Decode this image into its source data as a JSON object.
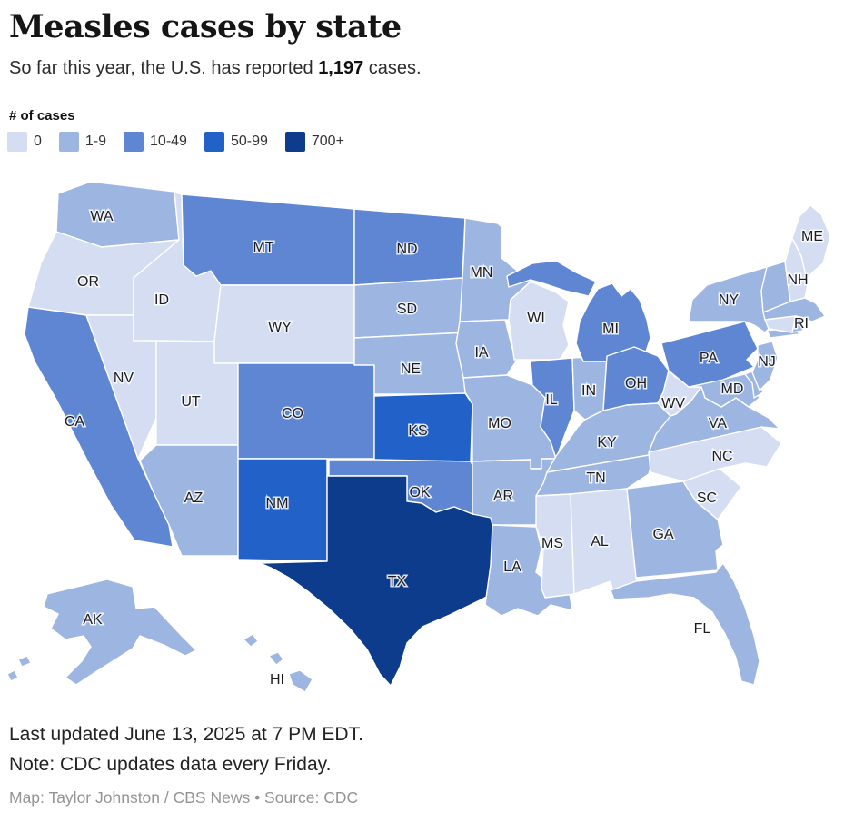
{
  "header": {
    "title": "Measles cases by state",
    "subtitle_prefix": "So far this year, the U.S. has reported ",
    "subtitle_value": "1,197",
    "subtitle_suffix": " cases."
  },
  "legend": {
    "label": "# of cases",
    "items": [
      {
        "label": "0",
        "color": "#d4ddf1"
      },
      {
        "label": "1-9",
        "color": "#9db5e1"
      },
      {
        "label": "10-49",
        "color": "#5e86d3"
      },
      {
        "label": "50-99",
        "color": "#2262c8"
      },
      {
        "label": "700+",
        "color": "#0d3c8c"
      }
    ]
  },
  "footer": {
    "updated": "Last updated June 13, 2025 at 7 PM EDT.",
    "note": "Note: CDC updates data every Friday.",
    "credit": "Map: Taylor Johnston / CBS News • Source: CDC"
  },
  "chart_data": {
    "type": "choropleth_map",
    "title": "Measles cases by state",
    "unit": "measles cases",
    "total_cases": "1,197",
    "buckets": [
      "0",
      "1-9",
      "10-49",
      "50-99",
      "700+"
    ],
    "states": [
      {
        "abbr": "WA",
        "cases": "1-9",
        "labeled": true
      },
      {
        "abbr": "OR",
        "cases": "0",
        "labeled": true
      },
      {
        "abbr": "CA",
        "cases": "10-49",
        "labeled": true
      },
      {
        "abbr": "ID",
        "cases": "0",
        "labeled": true
      },
      {
        "abbr": "NV",
        "cases": "0",
        "labeled": true
      },
      {
        "abbr": "MT",
        "cases": "10-49",
        "labeled": true
      },
      {
        "abbr": "WY",
        "cases": "0",
        "labeled": true
      },
      {
        "abbr": "UT",
        "cases": "0",
        "labeled": true
      },
      {
        "abbr": "AZ",
        "cases": "1-9",
        "labeled": true
      },
      {
        "abbr": "CO",
        "cases": "10-49",
        "labeled": true
      },
      {
        "abbr": "NM",
        "cases": "50-99",
        "labeled": true
      },
      {
        "abbr": "ND",
        "cases": "10-49",
        "labeled": true
      },
      {
        "abbr": "SD",
        "cases": "1-9",
        "labeled": true
      },
      {
        "abbr": "NE",
        "cases": "1-9",
        "labeled": true
      },
      {
        "abbr": "KS",
        "cases": "50-99",
        "labeled": true
      },
      {
        "abbr": "OK",
        "cases": "10-49",
        "labeled": true
      },
      {
        "abbr": "TX",
        "cases": "700+",
        "labeled": true
      },
      {
        "abbr": "MN",
        "cases": "1-9",
        "labeled": true
      },
      {
        "abbr": "IA",
        "cases": "1-9",
        "labeled": true
      },
      {
        "abbr": "MO",
        "cases": "1-9",
        "labeled": true
      },
      {
        "abbr": "AR",
        "cases": "1-9",
        "labeled": true
      },
      {
        "abbr": "LA",
        "cases": "1-9",
        "labeled": true
      },
      {
        "abbr": "WI",
        "cases": "0",
        "labeled": true
      },
      {
        "abbr": "IL",
        "cases": "10-49",
        "labeled": true
      },
      {
        "abbr": "IN",
        "cases": "1-9",
        "labeled": true
      },
      {
        "abbr": "MI",
        "cases": "10-49",
        "labeled": true
      },
      {
        "abbr": "OH",
        "cases": "10-49",
        "labeled": true
      },
      {
        "abbr": "KY",
        "cases": "1-9",
        "labeled": true
      },
      {
        "abbr": "TN",
        "cases": "1-9",
        "labeled": true
      },
      {
        "abbr": "MS",
        "cases": "0",
        "labeled": true
      },
      {
        "abbr": "AL",
        "cases": "0",
        "labeled": true
      },
      {
        "abbr": "GA",
        "cases": "1-9",
        "labeled": true
      },
      {
        "abbr": "FL",
        "cases": "1-9",
        "labeled": true
      },
      {
        "abbr": "SC",
        "cases": "0",
        "labeled": true
      },
      {
        "abbr": "NC",
        "cases": "0",
        "labeled": true
      },
      {
        "abbr": "VA",
        "cases": "1-9",
        "labeled": true
      },
      {
        "abbr": "WV",
        "cases": "0",
        "labeled": true
      },
      {
        "abbr": "MD",
        "cases": "1-9",
        "labeled": true
      },
      {
        "abbr": "DE",
        "cases": "1-9",
        "labeled": false
      },
      {
        "abbr": "PA",
        "cases": "10-49",
        "labeled": true
      },
      {
        "abbr": "NJ",
        "cases": "1-9",
        "labeled": true
      },
      {
        "abbr": "NY",
        "cases": "1-9",
        "labeled": true
      },
      {
        "abbr": "VT",
        "cases": "1-9",
        "labeled": false
      },
      {
        "abbr": "NH",
        "cases": "0",
        "labeled": true
      },
      {
        "abbr": "ME",
        "cases": "0",
        "labeled": true
      },
      {
        "abbr": "MA",
        "cases": "1-9",
        "labeled": false
      },
      {
        "abbr": "CT",
        "cases": "0",
        "labeled": false
      },
      {
        "abbr": "RI",
        "cases": "1-9",
        "labeled": true
      },
      {
        "abbr": "AK",
        "cases": "1-9",
        "labeled": true
      },
      {
        "abbr": "HI",
        "cases": "1-9",
        "labeled": true
      }
    ]
  }
}
